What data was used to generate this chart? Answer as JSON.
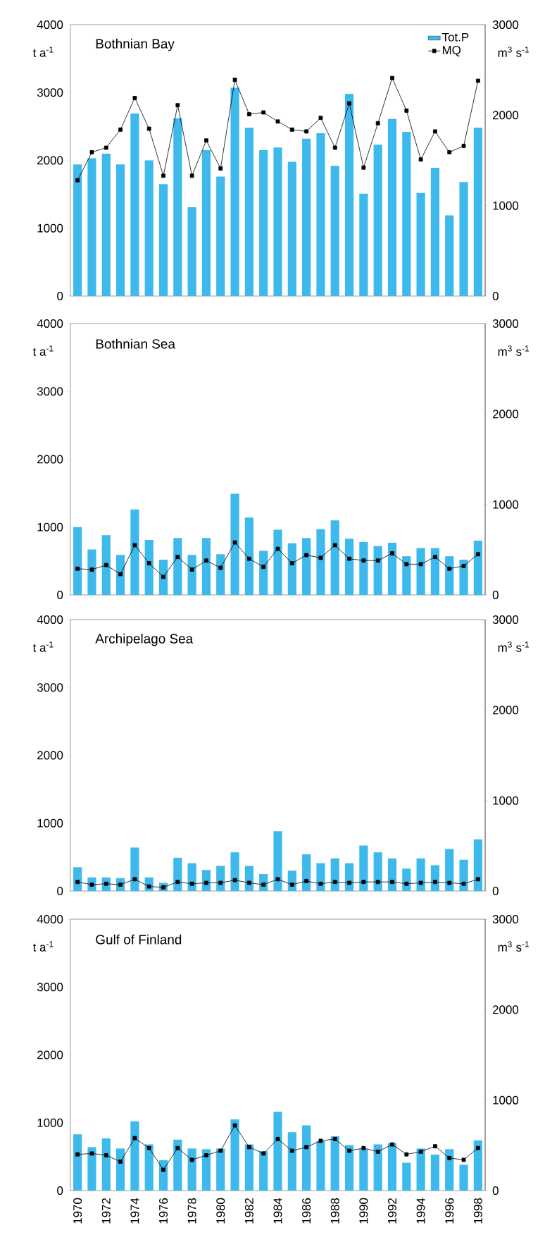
{
  "chart_data": [
    {
      "type": "bar",
      "title": "Bothnian Bay",
      "ylabel": "t a$^{-1}$",
      "y2label": "m$^{3}$ s$^{-1}$",
      "categories": [
        "1970",
        null,
        "1972",
        null,
        "1974",
        null,
        "1976",
        null,
        "1978",
        null,
        "1980",
        null,
        "1982",
        null,
        "1984",
        null,
        "1986",
        null,
        "1988",
        null,
        "1990",
        null,
        "1992",
        null,
        "1994",
        null,
        "1996",
        null,
        "1998"
      ],
      "series": [
        {
          "name": "Tot.P",
          "color": "#3db9ec",
          "values": [
            1940,
            2030,
            2100,
            1940,
            2690,
            2000,
            1650,
            2620,
            1310,
            2150,
            1760,
            3070,
            2480,
            2150,
            2190,
            1980,
            2320,
            2400,
            1920,
            2980,
            1510,
            2230,
            2610,
            2420,
            1520,
            1890,
            1190,
            1680,
            2480
          ]
        },
        {
          "name": "MQ",
          "type": "line",
          "axis": "y2",
          "color": "#000000",
          "values": [
            1280,
            1590,
            1640,
            1840,
            2190,
            1850,
            1330,
            2110,
            1330,
            1720,
            1410,
            2390,
            2010,
            2030,
            1930,
            1840,
            1820,
            1970,
            1640,
            2130,
            1420,
            1910,
            2410,
            2050,
            1510,
            1820,
            1590,
            1660,
            2380
          ]
        }
      ],
      "ylim": [
        0,
        4000
      ],
      "yticks": [
        0,
        1000,
        2000,
        3000,
        4000
      ],
      "y2lim": [
        0,
        3000
      ],
      "y2ticks": [
        0,
        1000,
        2000,
        3000
      ],
      "legend": "top right",
      "marker": "square",
      "line_style": "solid",
      "tick_labels": "y"
    },
    {
      "type": "bar",
      "title": "Bothnian Sea",
      "ylabel": "t a$^{-1}$",
      "y2label": "m$^{3}$ s$^{-1}$",
      "categories": [
        "1970",
        null,
        "1972",
        null,
        "1974",
        null,
        "1976",
        null,
        "1978",
        null,
        "1980",
        null,
        "1982",
        null,
        "1984",
        null,
        "1986",
        null,
        "1988",
        null,
        "1990",
        null,
        "1992",
        null,
        "1994",
        null,
        "1996",
        null,
        "1998"
      ],
      "series": [
        {
          "color": "#3db9ec",
          "values": [
            1000,
            670,
            880,
            590,
            1260,
            810,
            520,
            840,
            590,
            840,
            600,
            1490,
            1140,
            650,
            960,
            760,
            840,
            970,
            1100,
            830,
            780,
            720,
            770,
            570,
            690,
            690,
            570,
            520,
            800
          ]
        },
        {
          "type": "line",
          "axis": "y2",
          "color": "#000000",
          "values": [
            290,
            280,
            330,
            230,
            550,
            350,
            200,
            420,
            280,
            380,
            300,
            580,
            400,
            310,
            510,
            350,
            440,
            410,
            550,
            400,
            380,
            380,
            460,
            340,
            340,
            420,
            290,
            320,
            450
          ]
        }
      ],
      "ylim": [
        0,
        4000
      ],
      "yticks": [
        0,
        1000,
        2000,
        3000,
        4000
      ],
      "y2lim": [
        0,
        3000
      ],
      "y2ticks": [
        0,
        1000,
        2000,
        3000
      ],
      "marker": "square",
      "line_style": "solid",
      "tick_labels": "y"
    },
    {
      "type": "bar",
      "title": "Archipelago Sea",
      "ylabel": "t a$^{-1}$",
      "y2label": "m$^{3}$ s$^{-1}$",
      "categories": [
        "1970",
        null,
        "1972",
        null,
        "1974",
        null,
        "1976",
        null,
        "1978",
        null,
        "1980",
        null,
        "1982",
        null,
        "1984",
        null,
        "1986",
        null,
        "1988",
        null,
        "1990",
        null,
        "1992",
        null,
        "1994",
        null,
        "1996",
        null,
        "1998"
      ],
      "series": [
        {
          "color": "#3db9ec",
          "values": [
            350,
            200,
            200,
            190,
            640,
            200,
            120,
            490,
            410,
            310,
            370,
            570,
            370,
            250,
            880,
            300,
            540,
            410,
            480,
            410,
            670,
            570,
            480,
            330,
            480,
            380,
            620,
            460,
            760
          ]
        },
        {
          "type": "line",
          "axis": "y2",
          "color": "#000000",
          "values": [
            100,
            70,
            80,
            70,
            130,
            50,
            40,
            100,
            80,
            90,
            90,
            120,
            90,
            70,
            130,
            70,
            110,
            80,
            100,
            90,
            100,
            100,
            100,
            80,
            90,
            100,
            90,
            80,
            130
          ]
        }
      ],
      "ylim": [
        0,
        4000
      ],
      "yticks": [
        0,
        1000,
        2000,
        3000,
        4000
      ],
      "y2lim": [
        0,
        3000
      ],
      "y2ticks": [
        0,
        1000,
        2000,
        3000
      ],
      "marker": "square",
      "line_style": "solid",
      "tick_labels": "y"
    },
    {
      "type": "bar",
      "title": "Gulf of Finland",
      "ylabel": "t a$^{-1}$",
      "y2label": "m$^{3}$ s$^{-1}$",
      "categories": [
        "1970",
        null,
        "1972",
        null,
        "1974",
        null,
        "1976",
        null,
        "1978",
        null,
        "1980",
        null,
        "1982",
        null,
        "1984",
        null,
        "1986",
        null,
        "1988",
        null,
        "1990",
        null,
        "1992",
        null,
        "1994",
        null,
        "1996",
        null,
        "1998"
      ],
      "series": [
        {
          "color": "#3db9ec",
          "values": [
            830,
            640,
            770,
            620,
            1020,
            680,
            450,
            750,
            620,
            610,
            620,
            1050,
            680,
            580,
            1160,
            860,
            960,
            730,
            800,
            670,
            610,
            680,
            700,
            410,
            620,
            530,
            610,
            380,
            740
          ]
        },
        {
          "type": "line",
          "axis": "y2",
          "color": "#000000",
          "values": [
            400,
            410,
            390,
            320,
            580,
            470,
            230,
            470,
            340,
            390,
            440,
            720,
            480,
            410,
            570,
            440,
            480,
            550,
            570,
            440,
            470,
            430,
            510,
            400,
            430,
            490,
            360,
            340,
            470
          ]
        }
      ],
      "ylim": [
        0,
        4000
      ],
      "yticks": [
        0,
        1000,
        2000,
        3000,
        4000
      ],
      "y2lim": [
        0,
        3000
      ],
      "y2ticks": [
        0,
        1000,
        2000,
        3000
      ],
      "marker": "square",
      "line_style": "solid"
    }
  ]
}
